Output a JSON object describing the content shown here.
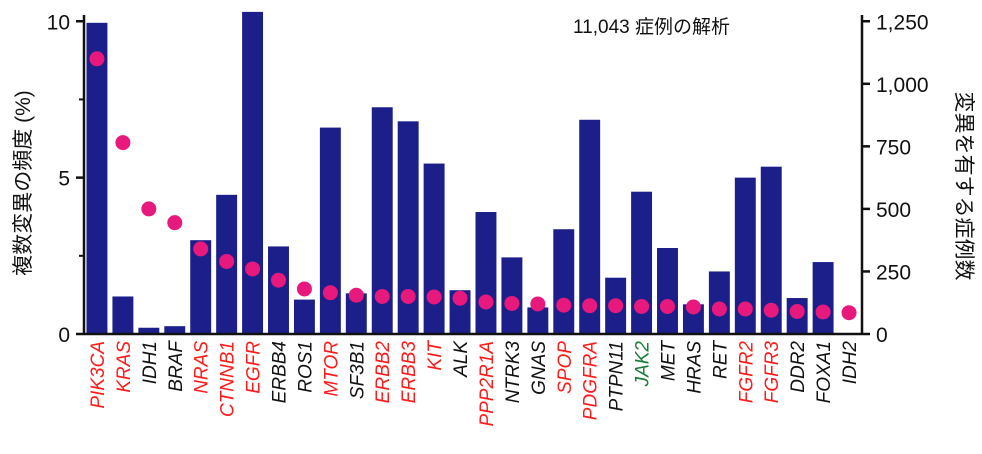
{
  "chart_data": {
    "type": "bar",
    "title": "11,043 症例の解析",
    "ylabel": "複数変異の頻度 (%)",
    "y2label": "変異を有する症例数",
    "ylim": [
      0,
      10.2
    ],
    "y2lim": [
      0,
      1275
    ],
    "yticks": [
      0,
      5,
      10
    ],
    "y2ticks": [
      "0",
      "250",
      "500",
      "750",
      "1,000",
      "1,250"
    ],
    "y2tick_values": [
      0,
      250,
      500,
      750,
      1000,
      1250
    ],
    "categories": [
      "PIK3CA",
      "KRAS",
      "IDH1",
      "BRAF",
      "NRAS",
      "CTNNB1",
      "EGFR",
      "ERBB4",
      "ROS1",
      "MTOR",
      "SF3B1",
      "ERBB2",
      "ERBB3",
      "KIT",
      "ALK",
      "PPP2R1A",
      "NTRK3",
      "GNAS",
      "SPOP",
      "PDGFRA",
      "PTPN11",
      "JAK2",
      "MET",
      "HRAS",
      "RET",
      "FGFR2",
      "FGFR3",
      "DDR2",
      "FOXA1",
      "IDH2"
    ],
    "category_colors": [
      "red",
      "red",
      "black",
      "black",
      "red",
      "red",
      "red",
      "black",
      "black",
      "red",
      "black",
      "red",
      "red",
      "red",
      "black",
      "red",
      "black",
      "black",
      "red",
      "red",
      "black",
      "green",
      "black",
      "black",
      "black",
      "red",
      "red",
      "black",
      "black",
      "black"
    ],
    "series": [
      {
        "type": "bar",
        "axis": "left",
        "color": "#1c1f8a",
        "values": [
          9.95,
          1.2,
          0.2,
          0.25,
          3.0,
          4.45,
          10.3,
          2.8,
          1.1,
          6.6,
          1.3,
          7.25,
          6.8,
          5.45,
          1.4,
          3.9,
          2.45,
          0.85,
          3.35,
          6.85,
          1.8,
          4.55,
          2.75,
          0.95,
          2.0,
          5.0,
          5.35,
          1.15,
          2.3,
          0
        ]
      },
      {
        "type": "scatter",
        "axis": "right",
        "color": "#e8197d",
        "values": [
          1100,
          765,
          500,
          445,
          340,
          290,
          260,
          215,
          180,
          165,
          155,
          150,
          150,
          148,
          143,
          128,
          122,
          120,
          115,
          113,
          113,
          110,
          110,
          108,
          100,
          100,
          95,
          90,
          88,
          85
        ]
      }
    ],
    "colors": {
      "bar": "#1c1f8a",
      "dot": "#e8197d",
      "red": "#ff1a1a",
      "green": "#1a7a3a",
      "black": "#111111"
    }
  }
}
